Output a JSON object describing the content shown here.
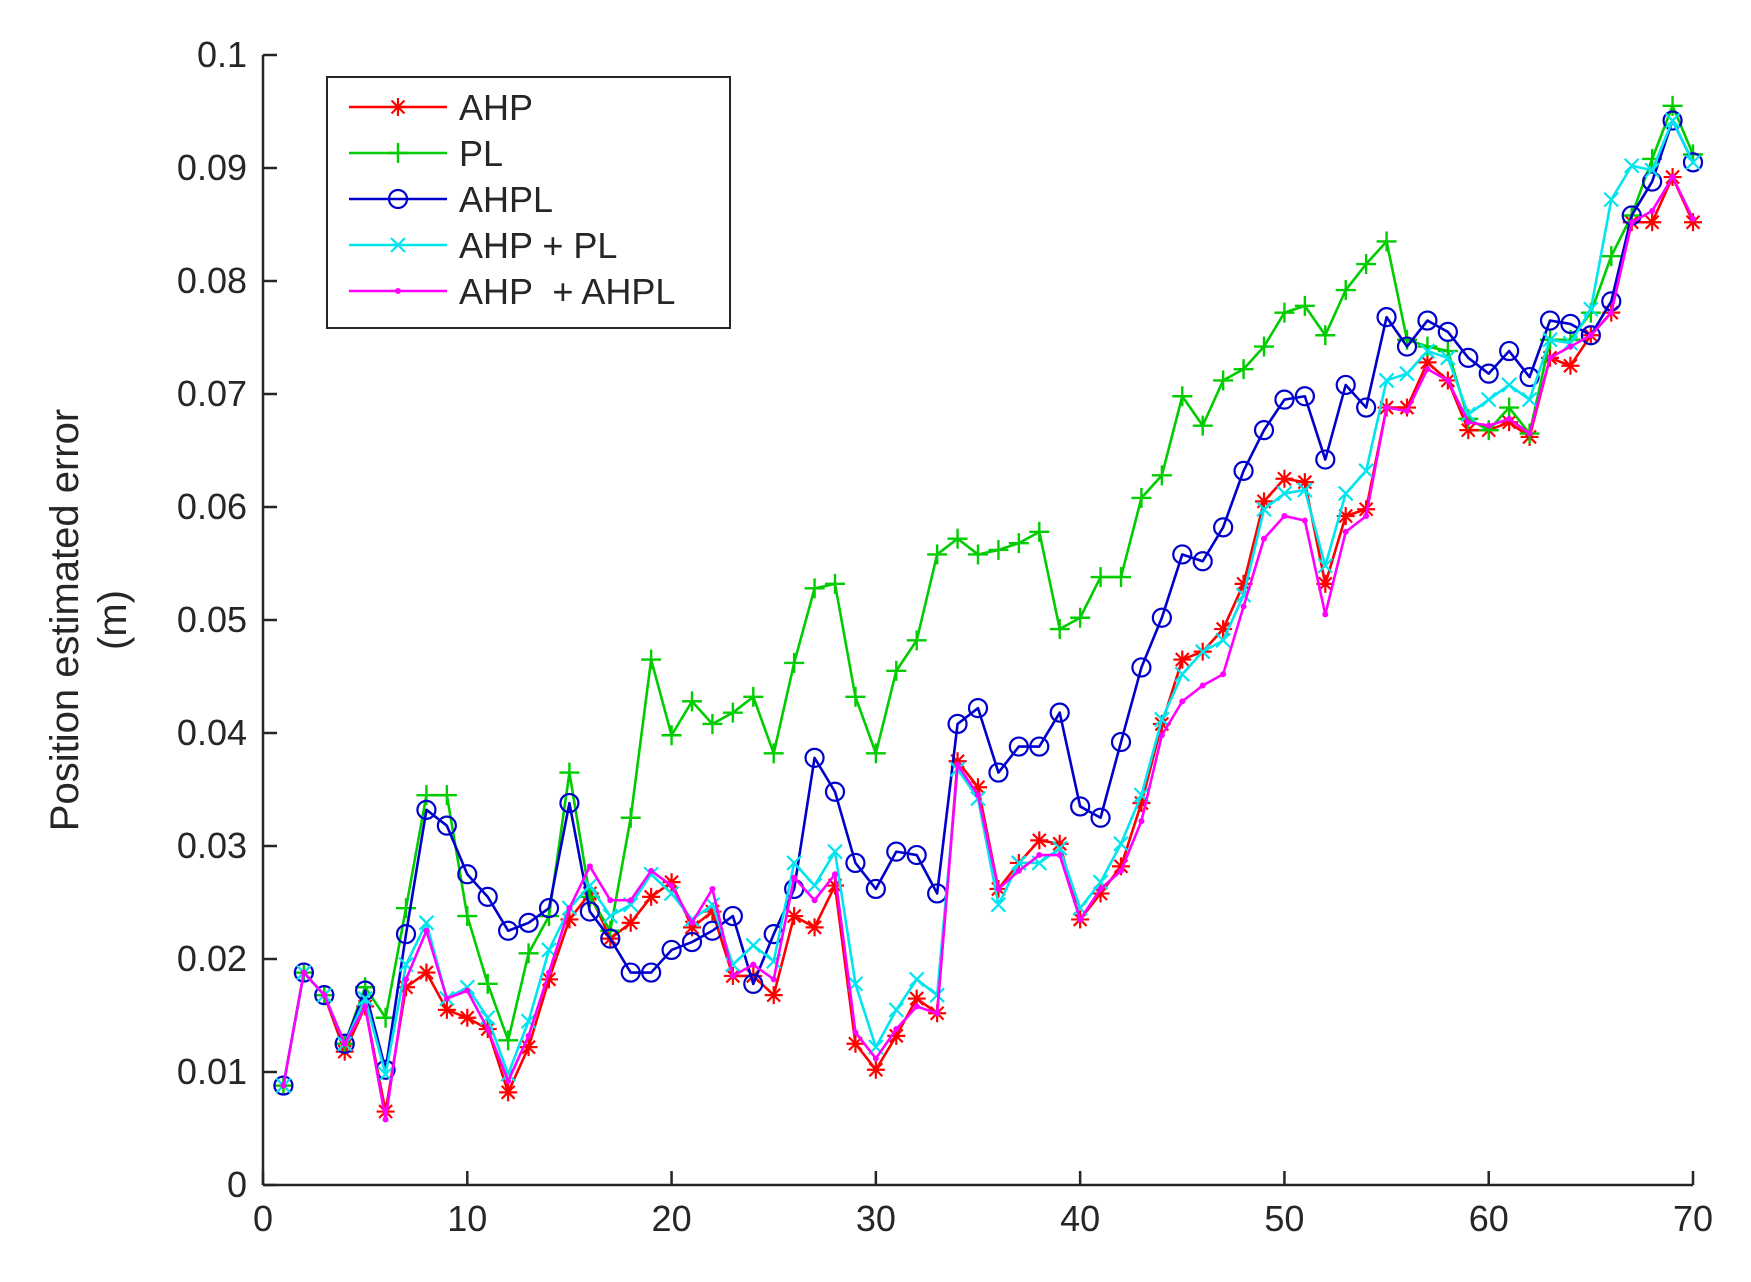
{
  "chart_data": {
    "type": "line",
    "title": "",
    "xlabel": "",
    "ylabel": [
      "Position estimated error",
      "(m)"
    ],
    "xlim": [
      0,
      70
    ],
    "ylim": [
      0,
      0.1
    ],
    "xticks": [
      0,
      10,
      20,
      30,
      40,
      50,
      60,
      70
    ],
    "yticks": [
      0,
      0.01,
      0.02,
      0.03,
      0.04,
      0.05,
      0.06,
      0.07,
      0.08,
      0.09,
      0.1
    ],
    "xtick_labels": [
      "0",
      "10",
      "20",
      "30",
      "40",
      "50",
      "60",
      "70"
    ],
    "ytick_labels": [
      "0",
      "0.01",
      "0.02",
      "0.03",
      "0.04",
      "0.05",
      "0.06",
      "0.07",
      "0.08",
      "0.09",
      "0.1"
    ],
    "grid": false,
    "legend_position": "top-left",
    "x": [
      1,
      2,
      3,
      4,
      5,
      6,
      7,
      8,
      9,
      10,
      11,
      12,
      13,
      14,
      15,
      16,
      17,
      18,
      19,
      20,
      21,
      22,
      23,
      24,
      25,
      26,
      27,
      28,
      29,
      30,
      31,
      32,
      33,
      34,
      35,
      36,
      37,
      38,
      39,
      40,
      41,
      42,
      43,
      44,
      45,
      46,
      47,
      48,
      49,
      50,
      51,
      52,
      53,
      54,
      55,
      56,
      57,
      58,
      59,
      60,
      61,
      62,
      63,
      64,
      65,
      66,
      67,
      68,
      69,
      70
    ],
    "series": [
      {
        "name": "AHP",
        "color": "#ff0000",
        "marker": "asterisk",
        "values": [
          0.0088,
          0.0188,
          0.0168,
          0.0118,
          0.0158,
          0.0065,
          0.0175,
          0.0188,
          0.0155,
          0.0148,
          0.0138,
          0.0082,
          0.0122,
          0.0182,
          0.0235,
          0.0258,
          0.0218,
          0.0232,
          0.0255,
          0.0268,
          0.0228,
          0.0242,
          0.0185,
          0.0185,
          0.0168,
          0.0238,
          0.0228,
          0.0265,
          0.0125,
          0.0102,
          0.0132,
          0.0165,
          0.0152,
          0.0375,
          0.0352,
          0.0262,
          0.0285,
          0.0305,
          0.0302,
          0.0235,
          0.0258,
          0.0282,
          0.0338,
          0.0408,
          0.0465,
          0.0472,
          0.0492,
          0.0532,
          0.0605,
          0.0625,
          0.0622,
          0.0532,
          0.0592,
          0.0598,
          0.0688,
          0.0688,
          0.0728,
          0.0712,
          0.0668,
          0.0668,
          0.0675,
          0.0662,
          0.0732,
          0.0725,
          0.0752,
          0.0772,
          0.0852,
          0.0852,
          0.0892,
          0.0852
        ]
      },
      {
        "name": "PL",
        "color": "#00cc00",
        "marker": "plus",
        "values": [
          0.0088,
          0.0188,
          0.0168,
          0.0125,
          0.0175,
          0.0148,
          0.0245,
          0.0345,
          0.0345,
          0.0238,
          0.0178,
          0.0128,
          0.0205,
          0.0238,
          0.0365,
          0.0255,
          0.0225,
          0.0325,
          0.0465,
          0.0398,
          0.0428,
          0.0408,
          0.0418,
          0.0432,
          0.0382,
          0.0462,
          0.0528,
          0.0532,
          0.0432,
          0.0382,
          0.0455,
          0.0482,
          0.0558,
          0.0572,
          0.0558,
          0.0562,
          0.0568,
          0.0578,
          0.0492,
          0.0502,
          0.0538,
          0.0538,
          0.0608,
          0.0628,
          0.0698,
          0.0672,
          0.0712,
          0.0722,
          0.0742,
          0.0772,
          0.0778,
          0.0752,
          0.0792,
          0.0815,
          0.0835,
          0.0748,
          0.0742,
          0.0738,
          0.0678,
          0.0668,
          0.0688,
          0.0665,
          0.0748,
          0.0748,
          0.0772,
          0.0822,
          0.0858,
          0.0908,
          0.0955,
          0.0912
        ]
      },
      {
        "name": "AHPL",
        "color": "#0000cc",
        "marker": "circle",
        "values": [
          0.0088,
          0.0188,
          0.0168,
          0.0125,
          0.0172,
          0.0102,
          0.0222,
          0.0332,
          0.0318,
          0.0275,
          0.0255,
          0.0225,
          0.0232,
          0.0245,
          0.0338,
          0.0242,
          0.0218,
          0.0188,
          0.0188,
          0.0208,
          0.0215,
          0.0225,
          0.0238,
          0.0178,
          0.0222,
          0.0262,
          0.0378,
          0.0348,
          0.0285,
          0.0262,
          0.0295,
          0.0292,
          0.0258,
          0.0408,
          0.0422,
          0.0365,
          0.0388,
          0.0388,
          0.0418,
          0.0335,
          0.0325,
          0.0392,
          0.0458,
          0.0502,
          0.0558,
          0.0552,
          0.0582,
          0.0632,
          0.0668,
          0.0695,
          0.0698,
          0.0642,
          0.0708,
          0.0688,
          0.0768,
          0.0742,
          0.0765,
          0.0755,
          0.0732,
          0.0718,
          0.0738,
          0.0715,
          0.0765,
          0.0762,
          0.0752,
          0.0782,
          0.0858,
          0.0888,
          0.0942,
          0.0905
        ]
      },
      {
        "name": "AHP + PL",
        "color": "#00e5ee",
        "marker": "cross",
        "values": [
          0.0088,
          0.0188,
          0.0168,
          0.0125,
          0.0165,
          0.0098,
          0.0195,
          0.0232,
          0.0165,
          0.0175,
          0.0148,
          0.0098,
          0.0145,
          0.0208,
          0.0245,
          0.0265,
          0.0238,
          0.0248,
          0.0275,
          0.0258,
          0.0235,
          0.0248,
          0.0195,
          0.0212,
          0.0198,
          0.0285,
          0.0265,
          0.0295,
          0.0178,
          0.0122,
          0.0155,
          0.0182,
          0.0168,
          0.0368,
          0.0342,
          0.0248,
          0.0285,
          0.0285,
          0.0298,
          0.0245,
          0.0268,
          0.0302,
          0.0345,
          0.0412,
          0.0452,
          0.0472,
          0.0482,
          0.0522,
          0.0598,
          0.0612,
          0.0615,
          0.0548,
          0.0612,
          0.0632,
          0.0712,
          0.0718,
          0.0738,
          0.0732,
          0.0682,
          0.0695,
          0.0708,
          0.0695,
          0.0748,
          0.0745,
          0.0775,
          0.0872,
          0.0902,
          0.0898,
          0.0942,
          0.0905
        ]
      },
      {
        "name": "AHP  + AHPL",
        "color": "#ff00ff",
        "marker": "point",
        "values": [
          0.0088,
          0.0188,
          0.0168,
          0.0125,
          0.0158,
          0.0058,
          0.0182,
          0.0225,
          0.0165,
          0.0172,
          0.0138,
          0.0092,
          0.0132,
          0.0188,
          0.0245,
          0.0282,
          0.0252,
          0.0252,
          0.0278,
          0.0265,
          0.0232,
          0.0262,
          0.0185,
          0.0195,
          0.0182,
          0.0272,
          0.0252,
          0.0275,
          0.0135,
          0.0112,
          0.0138,
          0.0158,
          0.0152,
          0.0372,
          0.0345,
          0.0262,
          0.0278,
          0.0292,
          0.0292,
          0.0235,
          0.0262,
          0.0278,
          0.0322,
          0.0398,
          0.0428,
          0.0442,
          0.0452,
          0.0512,
          0.0572,
          0.0592,
          0.0588,
          0.0505,
          0.0578,
          0.0592,
          0.0688,
          0.0685,
          0.0722,
          0.0712,
          0.0675,
          0.0672,
          0.0678,
          0.0665,
          0.0732,
          0.0742,
          0.0752,
          0.0772,
          0.0852,
          0.0862,
          0.0892,
          0.0855
        ]
      }
    ]
  }
}
